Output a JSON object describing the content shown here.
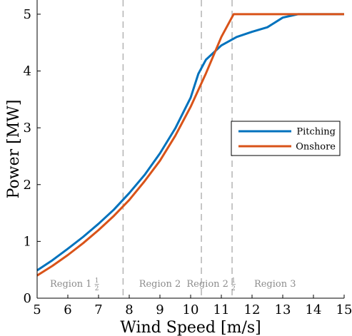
{
  "chart_data": {
    "type": "line",
    "xlabel": "Wind Speed [m/s]",
    "ylabel": "Power [MW]",
    "xlim": [
      5,
      15
    ],
    "ylim": [
      0,
      5.25
    ],
    "xticks": [
      5,
      6,
      7,
      8,
      9,
      10,
      11,
      12,
      13,
      14,
      15
    ],
    "yticks": [
      0,
      1,
      2,
      3,
      4,
      5
    ],
    "grid": false,
    "legend_position": "right",
    "series": [
      {
        "name": "Pitching",
        "color": "#0072bd",
        "x": [
          5,
          5.5,
          6,
          6.5,
          7,
          7.5,
          8,
          8.5,
          9,
          9.5,
          10,
          10.25,
          10.5,
          11,
          11.5,
          12,
          12.5,
          13,
          13.5,
          14,
          15
        ],
        "y": [
          0.49,
          0.67,
          0.87,
          1.08,
          1.31,
          1.56,
          1.85,
          2.17,
          2.55,
          2.99,
          3.53,
          3.95,
          4.2,
          4.45,
          4.6,
          4.69,
          4.77,
          4.94,
          5.0,
          5.0,
          5.0
        ]
      },
      {
        "name": "Onshore",
        "color": "#d95319",
        "x": [
          5,
          5.5,
          6,
          6.5,
          7,
          7.5,
          8,
          8.5,
          9,
          9.5,
          10,
          10.5,
          11,
          11.4,
          12,
          13,
          14,
          15
        ],
        "y": [
          0.4,
          0.57,
          0.76,
          0.97,
          1.2,
          1.45,
          1.73,
          2.06,
          2.42,
          2.86,
          3.37,
          3.96,
          4.6,
          5.0,
          5.0,
          5.0,
          5.0,
          5.0
        ]
      }
    ],
    "boundaries": [
      7.8,
      10.35,
      11.35
    ],
    "regions": [
      {
        "text": "Region 1",
        "frac": "1/2",
        "x": 6.1
      },
      {
        "text": "Region 2",
        "frac": "",
        "x": 9.0
      },
      {
        "text": "Region 2",
        "frac": "1/2",
        "x": 10.55
      },
      {
        "text": "Region 3",
        "frac": "",
        "x": 12.75
      }
    ]
  }
}
